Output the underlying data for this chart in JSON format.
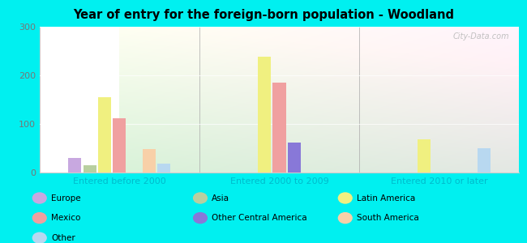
{
  "title": "Year of entry for the foreign-born population - Woodland",
  "categories": [
    "Entered before 2000",
    "Entered 2000 to 2009",
    "Entered 2010 or later"
  ],
  "series": {
    "Europe": [
      30,
      0,
      0
    ],
    "Asia": [
      15,
      0,
      0
    ],
    "Latin America": [
      155,
      238,
      68
    ],
    "Mexico": [
      112,
      185,
      0
    ],
    "Other Central America": [
      0,
      62,
      0
    ],
    "South America": [
      48,
      0,
      0
    ],
    "Other": [
      18,
      0,
      50
    ]
  },
  "colors": {
    "Europe": "#c8a8e0",
    "Asia": "#b8cfa0",
    "Latin America": "#f0f080",
    "Mexico": "#f0a0a0",
    "Other Central America": "#8878d8",
    "South America": "#f8d0a8",
    "Other": "#b8d8f0"
  },
  "bar_order": [
    "Europe",
    "Asia",
    "Latin America",
    "Mexico",
    "Other Central America",
    "South America",
    "Other"
  ],
  "ylim": [
    0,
    300
  ],
  "yticks": [
    0,
    100,
    200,
    300
  ],
  "outer_bg": "#00f0f0",
  "watermark": "City-Data.com",
  "col1": [
    "Europe",
    "Mexico",
    "Other"
  ],
  "col2": [
    "Asia",
    "Other Central America"
  ],
  "col3": [
    "Latin America",
    "South America"
  ]
}
